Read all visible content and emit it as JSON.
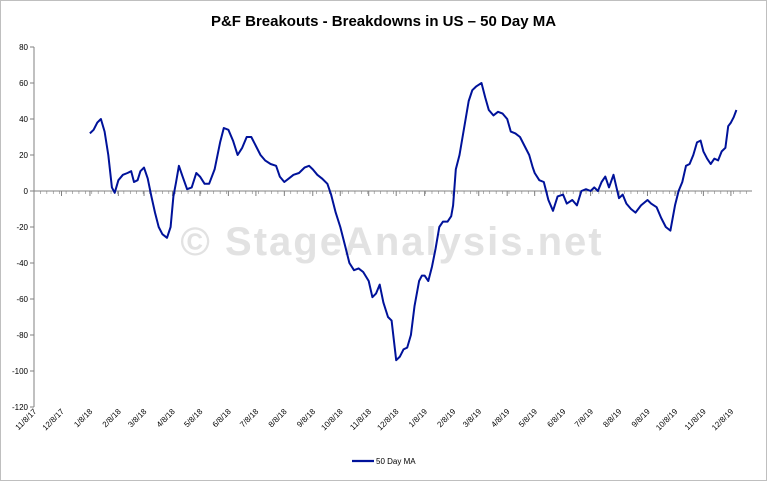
{
  "chart_data": {
    "type": "line",
    "title": "P&F Breakouts - Breakdowns in US – 50 Day MA",
    "watermark": "© StageAnalysis.net",
    "xlabel": "",
    "ylabel": "",
    "ylim": [
      -120,
      80
    ],
    "yticks": [
      80,
      60,
      40,
      20,
      0,
      -20,
      -40,
      -60,
      -80,
      -100,
      -120
    ],
    "xticks": [
      "11/8/17",
      "12/8/17",
      "1/8/18",
      "2/8/18",
      "3/8/18",
      "4/8/18",
      "5/8/18",
      "6/8/18",
      "7/8/18",
      "8/8/18",
      "9/8/18",
      "10/8/18",
      "11/8/18",
      "12/8/18",
      "1/8/19",
      "2/8/19",
      "3/8/19",
      "4/8/19",
      "5/8/19",
      "6/8/19",
      "7/8/19",
      "8/8/19",
      "9/8/19",
      "10/8/19",
      "11/8/19",
      "12/8/19"
    ],
    "legend_position": "bottom",
    "grid": false,
    "line_color": "#00129a",
    "series": [
      {
        "name": "50 Day MA",
        "points": [
          [
            "1/8/18",
            32
          ],
          [
            "1/12/18",
            34
          ],
          [
            "1/16/18",
            38
          ],
          [
            "1/20/18",
            40
          ],
          [
            "1/24/18",
            33
          ],
          [
            "1/28/18",
            20
          ],
          [
            "2/1/18",
            2
          ],
          [
            "2/4/18",
            -1
          ],
          [
            "2/8/18",
            6
          ],
          [
            "2/13/18",
            9
          ],
          [
            "2/18/18",
            10
          ],
          [
            "2/22/18",
            11
          ],
          [
            "2/25/18",
            5
          ],
          [
            "3/1/18",
            6
          ],
          [
            "3/4/18",
            11
          ],
          [
            "3/8/18",
            13
          ],
          [
            "3/12/18",
            7
          ],
          [
            "3/16/18",
            -3
          ],
          [
            "3/20/18",
            -12
          ],
          [
            "3/24/18",
            -20
          ],
          [
            "3/28/18",
            -24
          ],
          [
            "4/2/18",
            -26
          ],
          [
            "4/6/18",
            -20
          ],
          [
            "4/9/18",
            -3
          ],
          [
            "4/12/18",
            5
          ],
          [
            "4/15/18",
            14
          ],
          [
            "4/19/18",
            8
          ],
          [
            "4/24/18",
            1
          ],
          [
            "4/29/18",
            2
          ],
          [
            "5/4/18",
            10
          ],
          [
            "5/8/18",
            8
          ],
          [
            "5/13/18",
            4
          ],
          [
            "5/18/18",
            4
          ],
          [
            "5/24/18",
            12
          ],
          [
            "5/30/18",
            27
          ],
          [
            "6/3/18",
            35
          ],
          [
            "6/8/18",
            34
          ],
          [
            "6/13/18",
            28
          ],
          [
            "6/18/18",
            20
          ],
          [
            "6/23/18",
            24
          ],
          [
            "6/28/18",
            30
          ],
          [
            "7/3/18",
            30
          ],
          [
            "7/8/18",
            25
          ],
          [
            "7/13/18",
            20
          ],
          [
            "7/18/18",
            17
          ],
          [
            "7/24/18",
            15
          ],
          [
            "7/30/18",
            14
          ],
          [
            "8/3/18",
            8
          ],
          [
            "8/8/18",
            5
          ],
          [
            "8/13/18",
            7
          ],
          [
            "8/18/18",
            9
          ],
          [
            "8/24/18",
            10
          ],
          [
            "8/30/18",
            13
          ],
          [
            "9/4/18",
            14
          ],
          [
            "9/8/18",
            12
          ],
          [
            "9/13/18",
            9
          ],
          [
            "9/18/18",
            7
          ],
          [
            "9/24/18",
            4
          ],
          [
            "9/28/18",
            -2
          ],
          [
            "10/3/18",
            -12
          ],
          [
            "10/8/18",
            -20
          ],
          [
            "10/13/18",
            -30
          ],
          [
            "10/18/18",
            -40
          ],
          [
            "10/23/18",
            -44
          ],
          [
            "10/28/18",
            -43
          ],
          [
            "11/2/18",
            -45
          ],
          [
            "11/8/18",
            -50
          ],
          [
            "11/12/18",
            -59
          ],
          [
            "11/16/18",
            -57
          ],
          [
            "11/20/18",
            -52
          ],
          [
            "11/24/18",
            -62
          ],
          [
            "11/29/18",
            -70
          ],
          [
            "12/3/18",
            -72
          ],
          [
            "12/8/18",
            -94
          ],
          [
            "12/12/18",
            -92
          ],
          [
            "12/16/18",
            -88
          ],
          [
            "12/20/18",
            -87
          ],
          [
            "12/24/18",
            -80
          ],
          [
            "12/28/18",
            -64
          ],
          [
            "1/2/19",
            -50
          ],
          [
            "1/5/19",
            -47
          ],
          [
            "1/8/19",
            -47
          ],
          [
            "1/12/19",
            -50
          ],
          [
            "1/16/19",
            -42
          ],
          [
            "1/20/19",
            -32
          ],
          [
            "1/24/19",
            -20
          ],
          [
            "1/28/19",
            -17
          ],
          [
            "2/2/19",
            -17
          ],
          [
            "2/6/19",
            -14
          ],
          [
            "2/8/19",
            -8
          ],
          [
            "2/11/19",
            12
          ],
          [
            "2/15/19",
            20
          ],
          [
            "2/20/19",
            35
          ],
          [
            "2/25/19",
            50
          ],
          [
            "3/1/19",
            56
          ],
          [
            "3/5/19",
            58
          ],
          [
            "3/8/19",
            59
          ],
          [
            "3/11/19",
            60
          ],
          [
            "3/15/19",
            52
          ],
          [
            "3/19/19",
            45
          ],
          [
            "3/24/19",
            42
          ],
          [
            "3/29/19",
            44
          ],
          [
            "4/3/19",
            43
          ],
          [
            "4/8/19",
            40
          ],
          [
            "4/12/19",
            33
          ],
          [
            "4/17/19",
            32
          ],
          [
            "4/22/19",
            30
          ],
          [
            "4/27/19",
            25
          ],
          [
            "5/2/19",
            20
          ],
          [
            "5/6/19",
            13
          ],
          [
            "5/8/19",
            10
          ],
          [
            "5/13/19",
            6
          ],
          [
            "5/18/19",
            5
          ],
          [
            "5/23/19",
            -5
          ],
          [
            "5/28/19",
            -11
          ],
          [
            "6/2/19",
            -3
          ],
          [
            "6/8/19",
            -2
          ],
          [
            "6/12/19",
            -7
          ],
          [
            "6/18/19",
            -5
          ],
          [
            "6/23/19",
            -8
          ],
          [
            "6/28/19",
            0
          ],
          [
            "7/3/19",
            1
          ],
          [
            "7/8/19",
            0
          ],
          [
            "7/12/19",
            2
          ],
          [
            "7/16/19",
            0
          ],
          [
            "7/20/19",
            5
          ],
          [
            "7/24/19",
            8
          ],
          [
            "7/28/19",
            2
          ],
          [
            "8/2/19",
            9
          ],
          [
            "8/8/19",
            -4
          ],
          [
            "8/12/19",
            -2
          ],
          [
            "8/16/19",
            -7
          ],
          [
            "8/21/19",
            -10
          ],
          [
            "8/26/19",
            -12
          ],
          [
            "9/1/19",
            -8
          ],
          [
            "9/8/19",
            -5
          ],
          [
            "9/12/19",
            -7
          ],
          [
            "9/18/19",
            -9
          ],
          [
            "9/23/19",
            -15
          ],
          [
            "9/28/19",
            -20
          ],
          [
            "10/3/19",
            -22
          ],
          [
            "10/8/19",
            -8
          ],
          [
            "10/12/19",
            0
          ],
          [
            "10/16/19",
            5
          ],
          [
            "10/20/19",
            14
          ],
          [
            "10/24/19",
            15
          ],
          [
            "10/28/19",
            20
          ],
          [
            "11/1/19",
            27
          ],
          [
            "11/5/19",
            28
          ],
          [
            "11/8/19",
            22
          ],
          [
            "11/12/19",
            18
          ],
          [
            "11/16/19",
            15
          ],
          [
            "11/20/19",
            18
          ],
          [
            "11/24/19",
            17
          ],
          [
            "11/28/19",
            22
          ],
          [
            "12/2/19",
            24
          ],
          [
            "12/5/19",
            36
          ],
          [
            "12/8/19",
            38
          ],
          [
            "12/11/19",
            41
          ],
          [
            "12/14/19",
            45
          ]
        ]
      }
    ]
  }
}
